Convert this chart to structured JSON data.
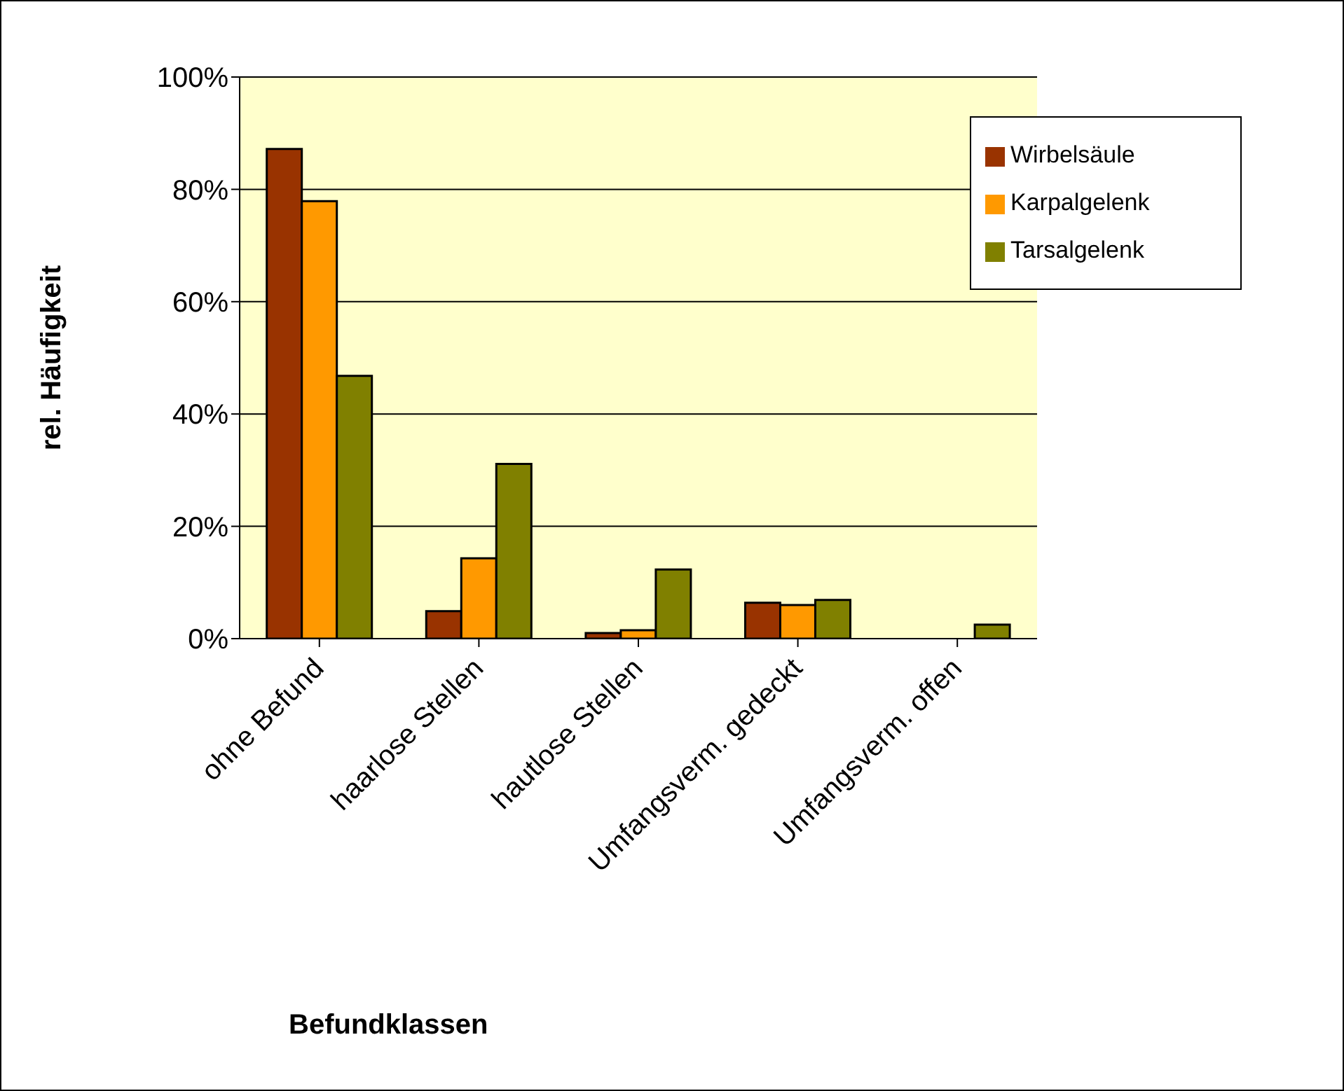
{
  "chart_data": {
    "type": "bar",
    "xlabel": "Befundklassen",
    "ylabel": "rel. Häufigkeit",
    "categories": [
      "ohne Befund",
      "haarlose Stellen",
      "hautlose Stellen",
      "Umfangsverm. gedeckt",
      "Umfangsverm. offen"
    ],
    "series": [
      {
        "name": "Wirbelsäule",
        "color": "#993300",
        "values": [
          87.2,
          4.9,
          1.0,
          6.4,
          0
        ]
      },
      {
        "name": "Karpalgelenk",
        "color": "#ff9900",
        "values": [
          77.9,
          14.3,
          1.5,
          6.0,
          0
        ]
      },
      {
        "name": "Tarsalgelenk",
        "color": "#808000",
        "values": [
          46.8,
          31.1,
          12.3,
          6.9,
          2.5
        ]
      }
    ],
    "ylim": [
      0,
      100
    ],
    "yticks": [
      {
        "value": 0,
        "label": "0%"
      },
      {
        "value": 20,
        "label": "20%"
      },
      {
        "value": 40,
        "label": "40%"
      },
      {
        "value": 60,
        "label": "60%"
      },
      {
        "value": 80,
        "label": "80%"
      },
      {
        "value": 100,
        "label": "100%"
      }
    ],
    "grid": "y",
    "legend": "top right"
  }
}
